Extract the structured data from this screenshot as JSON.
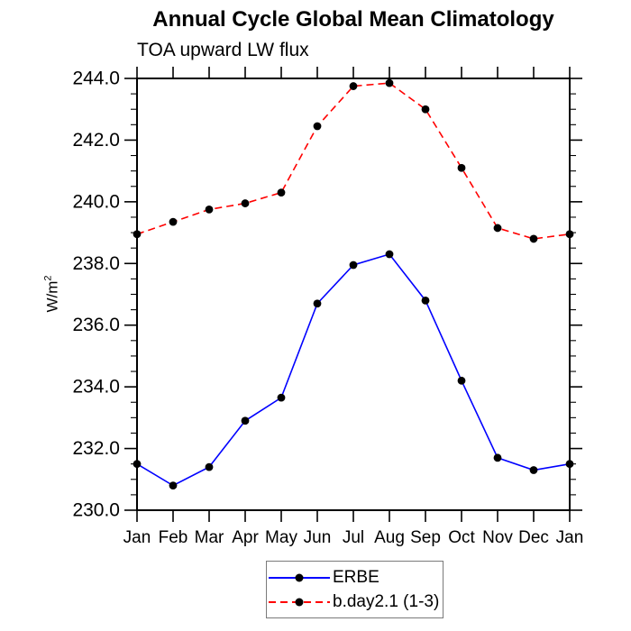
{
  "chart_data": {
    "type": "line",
    "title": "Annual Cycle Global Mean Climatology",
    "subtitle": "TOA upward LW flux",
    "ylabel": "W/m²",
    "ylabel_base": "W/m",
    "ylabel_sup": "2",
    "xlabel": "",
    "categories": [
      "Jan",
      "Feb",
      "Mar",
      "Apr",
      "May",
      "Jun",
      "Jul",
      "Aug",
      "Sep",
      "Oct",
      "Nov",
      "Dec",
      "Jan"
    ],
    "ylim": [
      230.0,
      244.0
    ],
    "ytick_major": 2.0,
    "ytick_minor": 0.5,
    "ytick_label_format": "one_decimal",
    "grid": false,
    "legend_position": "bottom-center",
    "frame_color": "#000000",
    "series": [
      {
        "name": "ERBE",
        "color": "#0000ff",
        "line": "solid",
        "marker": "filled-circle",
        "marker_color": "#000000",
        "values": [
          231.5,
          230.8,
          231.4,
          232.9,
          233.65,
          236.7,
          237.95,
          238.3,
          236.8,
          234.2,
          231.7,
          231.3,
          231.5
        ]
      },
      {
        "name": "b.day2.1 (1-3)",
        "color": "#ff0000",
        "line": "dashed",
        "marker": "filled-circle",
        "marker_color": "#000000",
        "values": [
          238.95,
          239.35,
          239.75,
          239.95,
          240.3,
          242.45,
          243.75,
          243.85,
          243.0,
          241.1,
          239.15,
          238.8,
          238.95
        ]
      }
    ]
  }
}
